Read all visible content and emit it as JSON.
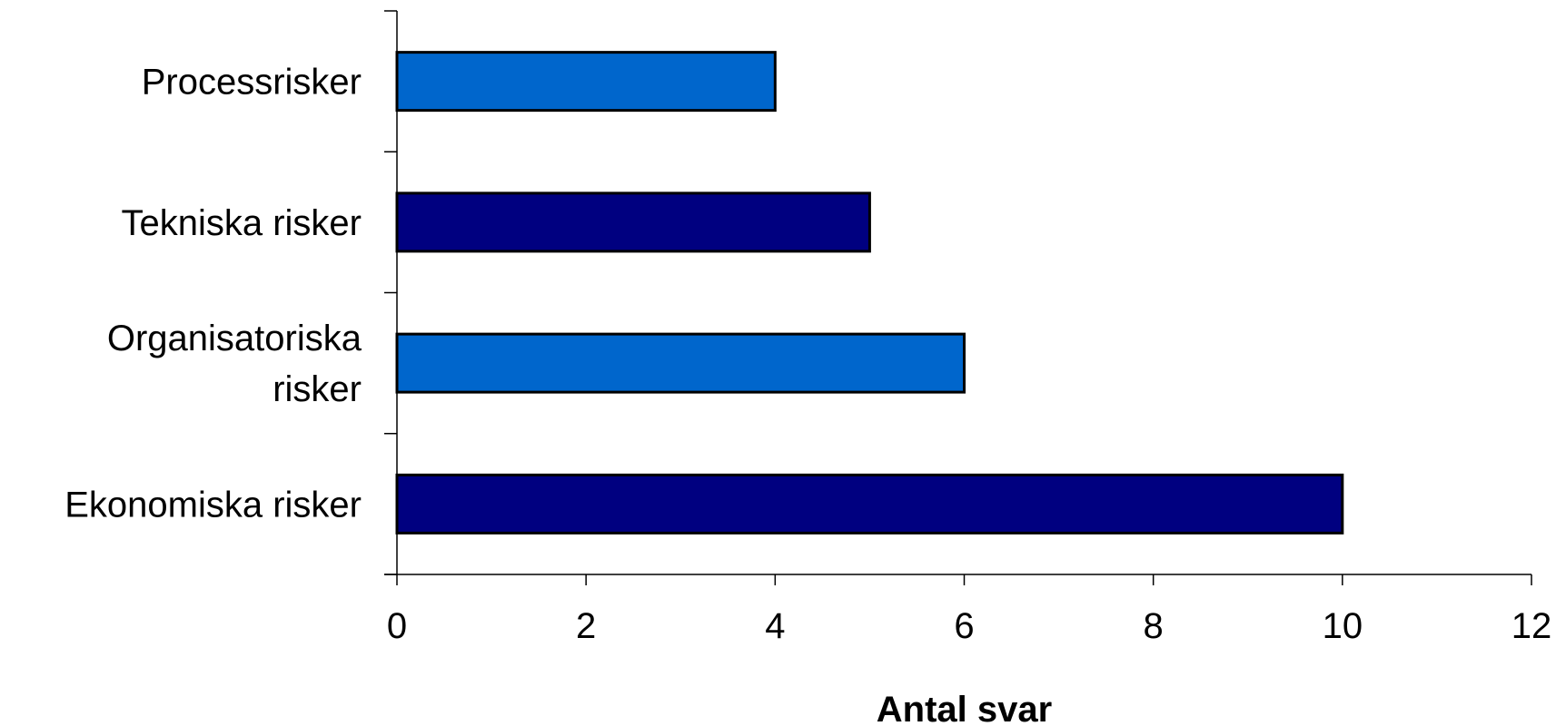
{
  "chart_data": {
    "type": "bar",
    "orientation": "horizontal",
    "categories": [
      [
        "Processrisker"
      ],
      [
        "Tekniska risker"
      ],
      [
        "Organisatoriska",
        "risker"
      ],
      [
        "Ekonomiska risker"
      ]
    ],
    "values": [
      4,
      5,
      6,
      10
    ],
    "bar_colors": [
      "#0066CC",
      "#000080",
      "#0066CC",
      "#000080"
    ],
    "xlabel": "Antal svar",
    "ylabel": "",
    "title": "",
    "xlim": [
      0,
      12
    ],
    "xticks": [
      0,
      2,
      4,
      6,
      8,
      10,
      12
    ],
    "grid": false,
    "legend": "none"
  }
}
